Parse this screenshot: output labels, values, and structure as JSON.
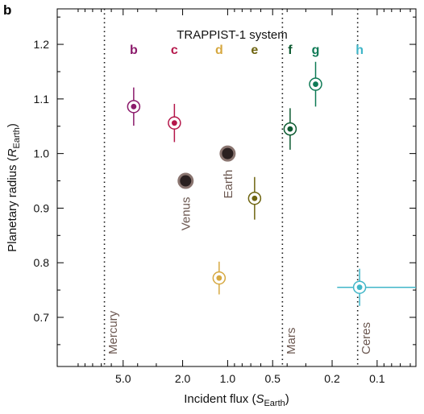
{
  "panel_letter": "b",
  "chart_data": {
    "type": "scatter",
    "title": "TRAPPIST-1 system",
    "xlabel": {
      "prefix": "Incident flux (",
      "var": "S",
      "sub": "Earth",
      "suffix": ")"
    },
    "ylabel": {
      "prefix": "Planetary radius (",
      "var": "R",
      "sub": "Earth",
      "suffix": ")"
    },
    "x_scale": "log",
    "x_reversed": true,
    "xlim": [
      13.8,
      0.055
    ],
    "ylim": [
      0.61,
      1.265
    ],
    "x_ticks": [
      {
        "value": 5.0,
        "label": "5.0"
      },
      {
        "value": 2.0,
        "label": "2.0"
      },
      {
        "value": 1.0,
        "label": "1.0"
      },
      {
        "value": 0.5,
        "label": "0.5"
      },
      {
        "value": 0.2,
        "label": "0.2"
      },
      {
        "value": 0.1,
        "label": "0.1"
      }
    ],
    "x_minor_ticks": [
      10,
      9,
      8,
      7,
      6,
      4,
      3,
      0.9,
      0.8,
      0.7,
      0.6,
      0.4,
      0.3,
      0.09,
      0.08,
      0.07,
      0.06
    ],
    "y_ticks": [
      {
        "value": 0.7,
        "label": "0.7"
      },
      {
        "value": 0.8,
        "label": "0.8"
      },
      {
        "value": 0.9,
        "label": "0.9"
      },
      {
        "value": 1.0,
        "label": "1.0"
      },
      {
        "value": 1.1,
        "label": "1.1"
      },
      {
        "value": 1.2,
        "label": "1.2"
      }
    ],
    "reference_lines": [
      {
        "name": "Mercury",
        "x": 6.67
      },
      {
        "name": "Mars",
        "x": 0.43
      },
      {
        "name": "Ceres",
        "x": 0.135
      }
    ],
    "planets": [
      {
        "name": "b",
        "x": 4.25,
        "y": 1.086,
        "y_err": 0.035,
        "color": "#8b1a6b"
      },
      {
        "name": "c",
        "x": 2.27,
        "y": 1.056,
        "y_err": 0.035,
        "color": "#b5174a"
      },
      {
        "name": "d",
        "x": 1.14,
        "y": 0.772,
        "y_err": 0.03,
        "color": "#d6a840"
      },
      {
        "name": "e",
        "x": 0.66,
        "y": 0.918,
        "y_err": 0.039,
        "color": "#6e6410"
      },
      {
        "name": "f",
        "x": 0.382,
        "y": 1.045,
        "y_err": 0.038,
        "color": "#0c5a30"
      },
      {
        "name": "g",
        "x": 0.258,
        "y": 1.127,
        "y_err": 0.041,
        "color": "#0e7a55"
      },
      {
        "name": "h",
        "x": 0.131,
        "y": 0.755,
        "y_err": 0.034,
        "x_err_low": 0.077,
        "x_err_high": 0.054,
        "color": "#40b6c8"
      }
    ],
    "solar_system": [
      {
        "name": "Venus",
        "x": 1.91,
        "y": 0.95
      },
      {
        "name": "Earth",
        "x": 1.0,
        "y": 1.0
      }
    ],
    "colors": {
      "solar_fill": "#2a2020",
      "solar_ring": "#8a7570",
      "ref_label": "#6b5750"
    }
  }
}
